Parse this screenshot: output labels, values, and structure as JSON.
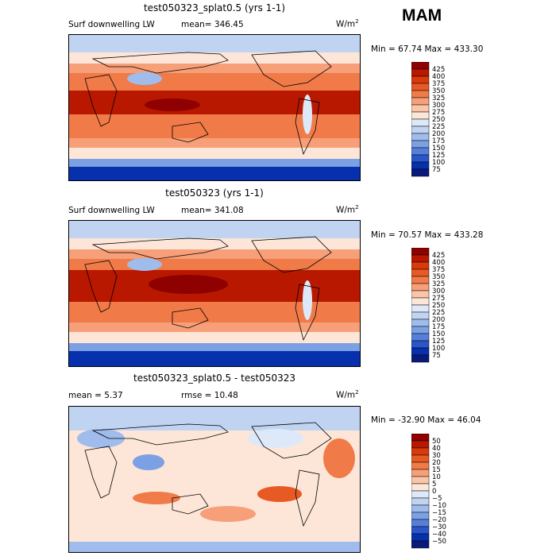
{
  "season": "MAM",
  "panels": [
    {
      "title": "test050323_splat0.5 (yrs 1-1)",
      "left_label": "Surf downwelling LW",
      "mean_text": "mean= 346.45",
      "units": "W/m",
      "units_sup": "2",
      "minmax": "Min =  67.74 Max = 433.30",
      "levels": [
        "425",
        "400",
        "375",
        "350",
        "325",
        "300",
        "275",
        "250",
        "225",
        "200",
        "175",
        "150",
        "125",
        "100",
        "75"
      ],
      "colors": [
        "#8f0000",
        "#b81800",
        "#d93a0a",
        "#e85a24",
        "#f07a48",
        "#f69f78",
        "#fbc6a8",
        "#fde6d8",
        "#dde9f8",
        "#c0d4f1",
        "#9fbcec",
        "#7ba0e4",
        "#557fd9",
        "#2b56c8",
        "#0630ac",
        "#0a1a7a"
      ],
      "chart_data": {
        "type": "heatmap",
        "description_text": "Surf downwelling LW",
        "mean": 346.45,
        "min": 67.74,
        "max": 433.3,
        "contour_levels": [
          75,
          100,
          125,
          150,
          175,
          200,
          225,
          250,
          275,
          300,
          325,
          350,
          375,
          400,
          425
        ]
      }
    },
    {
      "title": "test050323 (yrs 1-1)",
      "left_label": "Surf downwelling LW",
      "mean_text": "mean= 341.08",
      "units": "W/m",
      "units_sup": "2",
      "minmax": "Min =  70.57 Max = 433.28",
      "levels": [
        "425",
        "400",
        "375",
        "350",
        "325",
        "300",
        "275",
        "250",
        "225",
        "200",
        "175",
        "150",
        "125",
        "100",
        "75"
      ],
      "colors": [
        "#8f0000",
        "#b81800",
        "#d93a0a",
        "#e85a24",
        "#f07a48",
        "#f69f78",
        "#fbc6a8",
        "#fde6d8",
        "#dde9f8",
        "#c0d4f1",
        "#9fbcec",
        "#7ba0e4",
        "#557fd9",
        "#2b56c8",
        "#0630ac",
        "#0a1a7a"
      ],
      "chart_data": {
        "type": "heatmap",
        "description_text": "Surf downwelling LW",
        "mean": 341.08,
        "min": 70.57,
        "max": 433.28,
        "contour_levels": [
          75,
          100,
          125,
          150,
          175,
          200,
          225,
          250,
          275,
          300,
          325,
          350,
          375,
          400,
          425
        ]
      }
    },
    {
      "title": "test050323_splat0.5 - test050323",
      "left_label": "mean =    5.37",
      "mean_text": "rmse =  10.48",
      "units": "W/m",
      "units_sup": "2",
      "minmax": "Min = -32.90 Max =  46.04",
      "levels": [
        "50",
        "40",
        "30",
        "20",
        "15",
        "10",
        "5",
        "0",
        "−5",
        "−10",
        "−15",
        "−20",
        "−30",
        "−40",
        "−50"
      ],
      "colors": [
        "#8f0000",
        "#b81800",
        "#d93a0a",
        "#e85a24",
        "#f07a48",
        "#f69f78",
        "#fbc6a8",
        "#fde6d8",
        "#dde9f8",
        "#c0d4f1",
        "#9fbcec",
        "#7ba0e4",
        "#557fd9",
        "#2b56c8",
        "#0630ac",
        "#0a1a7a"
      ],
      "chart_data": {
        "type": "heatmap",
        "mean": 5.37,
        "rmse": 10.48,
        "min": -32.9,
        "max": 46.04,
        "contour_levels": [
          -50,
          -40,
          -30,
          -20,
          -15,
          -10,
          -5,
          0,
          5,
          10,
          15,
          20,
          30,
          40,
          50
        ]
      }
    }
  ]
}
